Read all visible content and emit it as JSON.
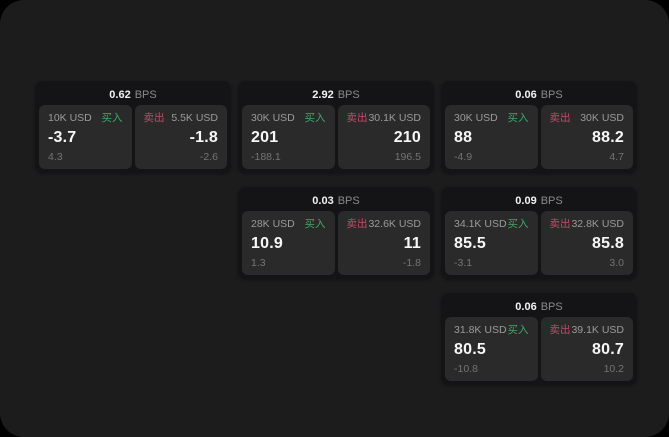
{
  "labels": {
    "bps_unit": "BPS",
    "buy": "买入",
    "sell": "卖出"
  },
  "colors": {
    "page_background": "#1c1c1d",
    "outer_background": "#000000",
    "card_background": "#141416",
    "panel_background": "#2a2a2b",
    "buy_green": "#43a567",
    "sell_red": "#c44a66",
    "primary_text": "#f2f2f2",
    "muted_text": "#8a8a8a"
  },
  "cards": [
    {
      "spread": "0.62",
      "buy_size": "10K USD",
      "buy_price": "-3.7",
      "buy_sub": "4.3",
      "sell_size": "5.5K USD",
      "sell_price": "-1.8",
      "sell_sub": "-2.6"
    },
    {
      "spread": "2.92",
      "buy_size": "30K USD",
      "buy_price": "201",
      "buy_sub": "-188.1",
      "sell_size": "30.1K USD",
      "sell_price": "210",
      "sell_sub": "196.5"
    },
    {
      "spread": "0.06",
      "buy_size": "30K USD",
      "buy_price": "88",
      "buy_sub": "-4.9",
      "sell_size": "30K USD",
      "sell_price": "88.2",
      "sell_sub": "4.7"
    },
    {
      "spread": "0.03",
      "buy_size": "28K USD",
      "buy_price": "10.9",
      "buy_sub": "1.3",
      "sell_size": "32.6K USD",
      "sell_price": "11",
      "sell_sub": "-1.8"
    },
    {
      "spread": "0.09",
      "buy_size": "34.1K USD",
      "buy_price": "85.5",
      "buy_sub": "-3.1",
      "sell_size": "32.8K USD",
      "sell_price": "85.8",
      "sell_sub": "3.0"
    },
    {
      "spread": "0.06",
      "buy_size": "31.8K USD",
      "buy_price": "80.5",
      "buy_sub": "-10.8",
      "sell_size": "39.1K USD",
      "sell_price": "80.7",
      "sell_sub": "10.2"
    }
  ]
}
